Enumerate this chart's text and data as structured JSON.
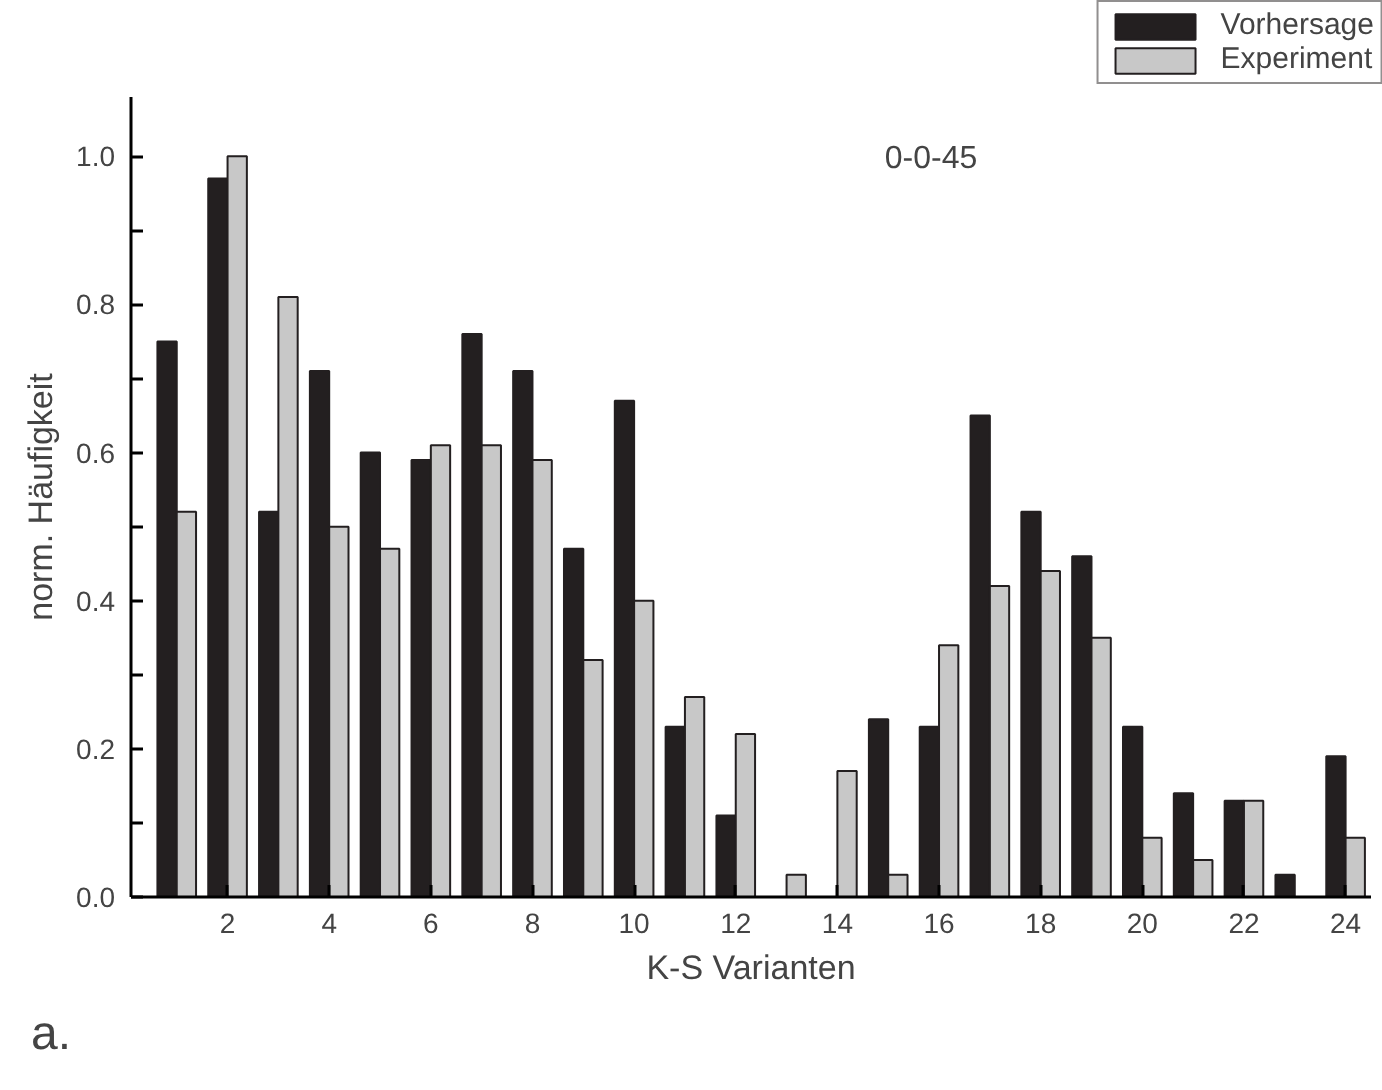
{
  "chart_data": {
    "type": "bar",
    "xlabel": "K-S Varianten",
    "ylabel": "norm. Häufigkeit",
    "annotations": [
      "0-0-45",
      "a."
    ],
    "x": [
      1,
      2,
      3,
      4,
      5,
      6,
      7,
      8,
      9,
      10,
      11,
      12,
      13,
      14,
      15,
      16,
      17,
      18,
      19,
      20,
      21,
      22,
      23,
      24
    ],
    "series": [
      {
        "name": "Vorhersage",
        "color": "#231f20",
        "values": [
          0.75,
          0.97,
          0.52,
          0.71,
          0.6,
          0.59,
          0.76,
          0.71,
          0.47,
          0.67,
          0.23,
          0.11,
          null,
          null,
          0.24,
          0.23,
          0.65,
          0.52,
          0.46,
          0.23,
          0.14,
          0.13,
          0.03,
          0.19
        ]
      },
      {
        "name": "Experiment",
        "color": "#c8c8c8",
        "values": [
          0.52,
          1.0,
          0.81,
          0.5,
          0.47,
          0.61,
          0.61,
          0.59,
          0.32,
          0.4,
          0.27,
          0.22,
          0.03,
          0.17,
          0.03,
          0.34,
          0.42,
          0.44,
          0.35,
          0.08,
          0.05,
          0.13,
          null,
          0.08
        ]
      }
    ],
    "xlim": [
      0.1,
      24.5
    ],
    "xticks": [
      2,
      4,
      6,
      8,
      10,
      12,
      14,
      16,
      18,
      20,
      22,
      24
    ],
    "ylim": [
      0,
      1.08
    ],
    "yticks": [
      {
        "value": 0,
        "label": "0.0"
      },
      {
        "value": 0.1,
        "label": null
      },
      {
        "value": 0.2,
        "label": "0.2"
      },
      {
        "value": 0.3,
        "label": null
      },
      {
        "value": 0.4,
        "label": "0.4"
      },
      {
        "value": 0.5,
        "label": null
      },
      {
        "value": 0.6,
        "label": "0.6"
      },
      {
        "value": 0.7,
        "label": null
      },
      {
        "value": 0.8,
        "label": "0.8"
      },
      {
        "value": 0.9,
        "label": null
      },
      {
        "value": 1.0,
        "label": "1.0"
      }
    ],
    "grid": false,
    "legend": "top right"
  }
}
